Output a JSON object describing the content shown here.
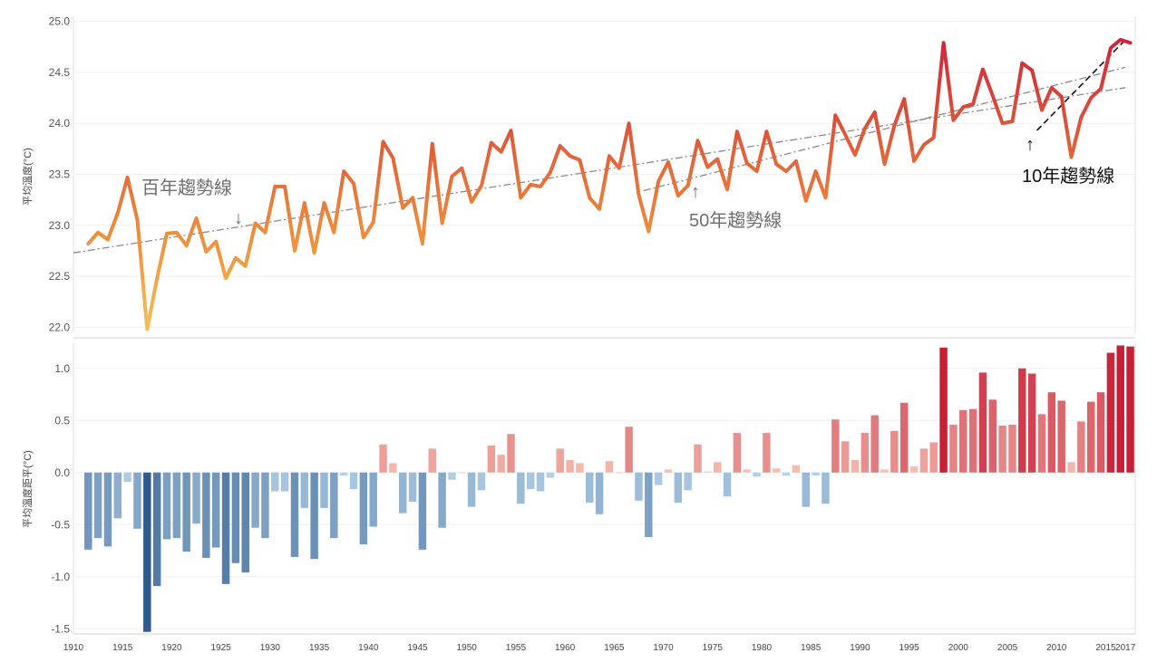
{
  "chart_data": [
    {
      "type": "line",
      "ylabel": "平均溫度(°C)",
      "ylim": [
        21.95,
        25.05
      ],
      "yticks": [
        "22.0",
        "22.5",
        "23.0",
        "23.5",
        "24.0",
        "24.5",
        "25.0"
      ],
      "x_start": 1911,
      "x_end": 2017,
      "values": [
        22.82,
        22.93,
        22.86,
        23.12,
        23.47,
        23.05,
        21.98,
        22.48,
        22.92,
        22.93,
        22.8,
        23.07,
        22.74,
        22.84,
        22.48,
        22.68,
        22.6,
        23.02,
        22.93,
        23.38,
        23.38,
        22.75,
        23.22,
        22.73,
        23.22,
        22.93,
        23.53,
        23.41,
        22.88,
        23.03,
        23.82,
        23.66,
        23.17,
        23.27,
        22.82,
        23.8,
        23.02,
        23.48,
        23.56,
        23.23,
        23.39,
        23.81,
        23.72,
        23.93,
        23.27,
        23.4,
        23.38,
        23.52,
        23.78,
        23.68,
        23.64,
        23.27,
        23.16,
        23.68,
        23.56,
        24.0,
        23.3,
        22.94,
        23.43,
        23.62,
        23.29,
        23.39,
        23.83,
        23.57,
        23.65,
        23.35,
        23.92,
        23.61,
        23.53,
        23.92,
        23.6,
        23.53,
        23.63,
        23.24,
        23.53,
        23.27,
        24.08,
        23.89,
        23.69,
        23.95,
        24.11,
        23.6,
        23.98,
        24.24,
        23.63,
        23.79,
        23.86,
        24.79,
        24.03,
        24.16,
        24.19,
        24.53,
        24.27,
        24.0,
        24.02,
        24.59,
        24.52,
        24.13,
        24.35,
        24.26,
        23.67,
        24.06,
        24.25,
        24.34,
        24.74,
        24.82,
        24.79
      ],
      "trend_lines": [
        {
          "label": "百年趨勢線",
          "from": [
            1910,
            22.73
          ],
          "to": [
            2017,
            24.35
          ]
        },
        {
          "label": "50年趨勢線",
          "from": [
            1968,
            23.34
          ],
          "to": [
            2017,
            24.55
          ]
        },
        {
          "label": "10年趨勢線",
          "from": [
            2008,
            23.93
          ],
          "to": [
            2017,
            24.82
          ]
        }
      ]
    },
    {
      "type": "bar",
      "ylabel": "平均溫度距平(°C)",
      "ylim": [
        -1.55,
        1.25
      ],
      "yticks": [
        "1.0",
        "0.5",
        "0.0",
        "-0.5",
        "-1.0",
        "-1.5"
      ],
      "x_start": 1911,
      "x_end": 2017,
      "values": [
        -0.74,
        -0.63,
        -0.71,
        -0.44,
        -0.09,
        -0.54,
        -1.53,
        -1.09,
        -0.64,
        -0.63,
        -0.76,
        -0.49,
        -0.82,
        -0.72,
        -1.07,
        -0.87,
        -0.96,
        -0.53,
        -0.63,
        -0.18,
        -0.18,
        -0.81,
        -0.34,
        -0.83,
        -0.34,
        -0.63,
        -0.03,
        -0.16,
        -0.69,
        -0.52,
        0.27,
        0.09,
        -0.39,
        -0.28,
        -0.74,
        0.23,
        -0.53,
        -0.07,
        0.0,
        -0.33,
        -0.17,
        0.26,
        0.17,
        0.37,
        -0.3,
        -0.16,
        -0.18,
        -0.05,
        0.23,
        0.12,
        0.09,
        -0.29,
        -0.4,
        0.11,
        0.0,
        0.44,
        -0.27,
        -0.62,
        -0.12,
        0.03,
        -0.29,
        -0.17,
        0.27,
        0.01,
        0.1,
        -0.23,
        0.38,
        0.03,
        -0.04,
        0.38,
        0.04,
        -0.03,
        0.07,
        -0.33,
        -0.03,
        -0.3,
        0.51,
        0.3,
        0.12,
        0.38,
        0.55,
        0.03,
        0.4,
        0.67,
        0.06,
        0.23,
        0.29,
        1.2,
        0.46,
        0.6,
        0.61,
        0.96,
        0.7,
        0.45,
        0.46,
        1.0,
        0.95,
        0.56,
        0.77,
        0.69,
        0.1,
        0.49,
        0.68,
        0.77,
        1.15,
        1.22,
        1.21
      ]
    }
  ],
  "x_axis": {
    "tick_labels": [
      "1910",
      "1915",
      "1920",
      "1925",
      "1930",
      "1935",
      "1940",
      "1945",
      "1950",
      "1955",
      "1960",
      "1965",
      "1970",
      "1975",
      "1980",
      "1985",
      "1990",
      "1995",
      "2000",
      "2005",
      "2010",
      "2015",
      "2017"
    ]
  },
  "annotations": {
    "century": "百年趨勢線",
    "fifty": "50年趨勢線",
    "ten": "10年趨勢線",
    "arrow_down": "↓",
    "arrow_up": "↑"
  },
  "colors": {
    "line_low": "#f5c057",
    "line_mid": "#ee8a3a",
    "line_high": "#d0263a",
    "bar_neg_strong": "#2e5a8c",
    "bar_neg_light": "#b6d3ea",
    "bar_pos_light": "#f7c4b6",
    "bar_pos_strong": "#c81e36",
    "trend_gray": "#8a8a8a",
    "trend_dark": "#111111"
  }
}
